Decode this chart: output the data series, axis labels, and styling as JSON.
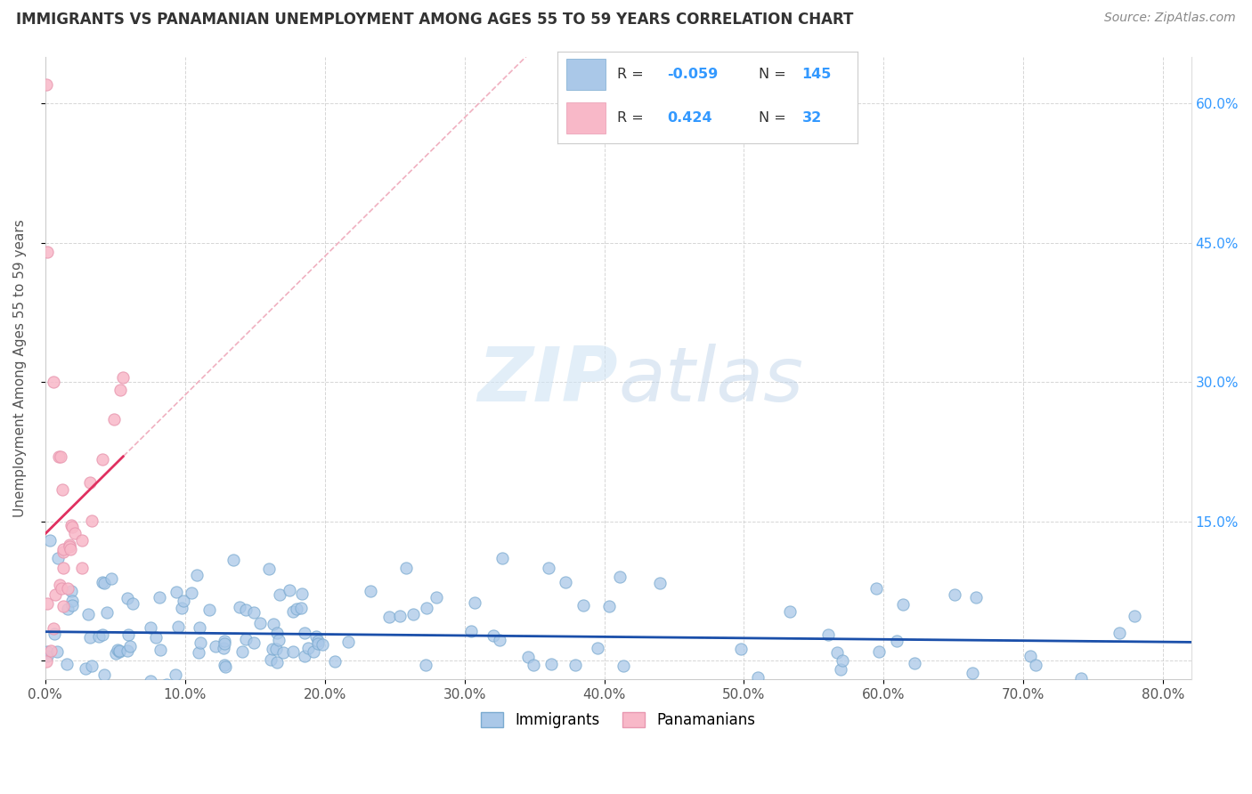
{
  "title": "IMMIGRANTS VS PANAMANIAN UNEMPLOYMENT AMONG AGES 55 TO 59 YEARS CORRELATION CHART",
  "source": "Source: ZipAtlas.com",
  "ylabel": "Unemployment Among Ages 55 to 59 years",
  "xlim": [
    0.0,
    0.82
  ],
  "ylim": [
    -0.02,
    0.65
  ],
  "plot_ylim": [
    -0.02,
    0.65
  ],
  "xticks": [
    0.0,
    0.1,
    0.2,
    0.3,
    0.4,
    0.5,
    0.6,
    0.7,
    0.8
  ],
  "xticklabels": [
    "0.0%",
    "",
    "",
    "",
    "",
    "",
    "",
    "",
    "80.0%"
  ],
  "yticks_right": [
    0.15,
    0.3,
    0.45,
    0.6
  ],
  "yticklabels_right": [
    "15.0%",
    "30.0%",
    "45.0%",
    "60.0%"
  ],
  "blue_R": -0.059,
  "blue_N": 145,
  "pink_R": 0.424,
  "pink_N": 32,
  "blue_dot_color": "#aac8e8",
  "blue_dot_edge": "#7aaad0",
  "pink_dot_color": "#f8b8c8",
  "pink_dot_edge": "#e898b0",
  "blue_line_color": "#1a4faa",
  "pink_line_color": "#e03060",
  "pink_dash_color": "#f0b0c0",
  "gray_dash_color": "#c8c8c8",
  "legend_label_blue": "Immigrants",
  "legend_label_pink": "Panamanians",
  "watermark_zip": "ZIP",
  "watermark_atlas": "atlas",
  "background_color": "#ffffff",
  "grid_color": "#cccccc",
  "title_color": "#333333",
  "right_axis_color": "#3399ff"
}
